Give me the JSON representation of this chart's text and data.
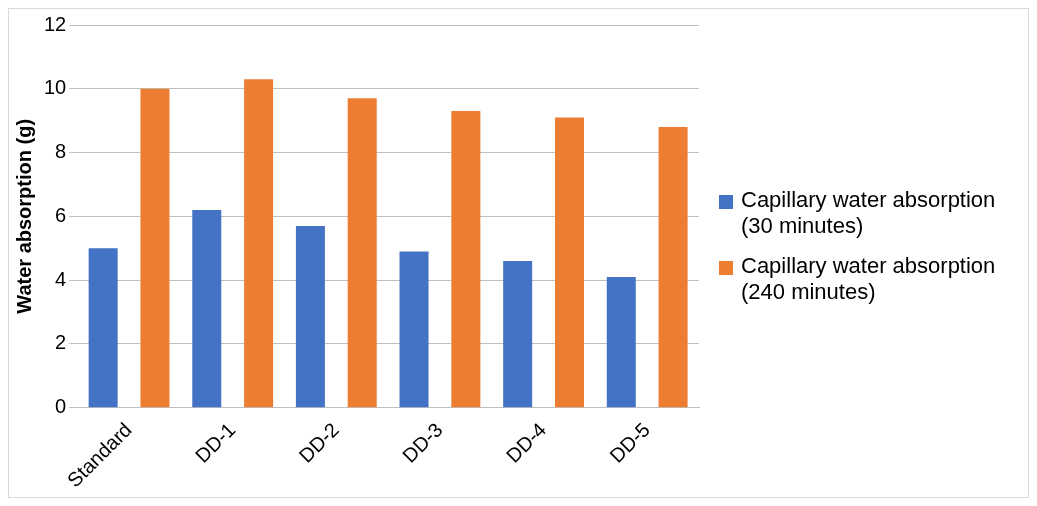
{
  "chart_data": {
    "type": "bar",
    "ylabel": "Water absorption (g)",
    "categories": [
      "Standard",
      "DD-1",
      "DD-2",
      "DD-3",
      "DD-4",
      "DD-5"
    ],
    "series": [
      {
        "name": "Capillary water absorption (30 minutes)",
        "color": "#4472c4",
        "values": [
          5.0,
          6.2,
          5.7,
          4.9,
          4.6,
          4.1
        ]
      },
      {
        "name": "Capillary water absorption (240 minutes)",
        "color": "#ed7d31",
        "values": [
          10.0,
          10.3,
          9.7,
          9.3,
          9.1,
          8.8
        ]
      }
    ],
    "ylim": [
      0,
      12
    ],
    "yticks": [
      0,
      2,
      4,
      6,
      8,
      10,
      12
    ],
    "grid": "y",
    "legend": "right"
  }
}
